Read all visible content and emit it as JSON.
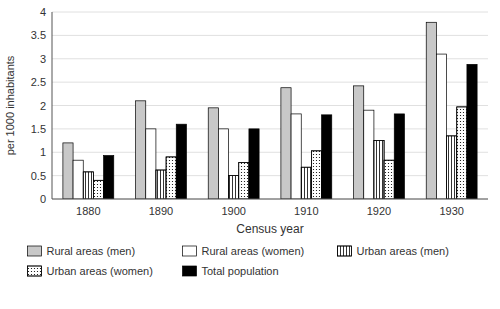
{
  "chart_data": {
    "type": "bar",
    "xlabel": "Census year",
    "ylabel": "per 1000 inhabitants",
    "categories": [
      "1880",
      "1890",
      "1900",
      "1910",
      "1920",
      "1930"
    ],
    "series": [
      {
        "name": "Rural areas (men)",
        "color": "#c8c8c8",
        "values": [
          1.2,
          2.1,
          1.95,
          2.38,
          2.42,
          3.78
        ]
      },
      {
        "name": "Rural areas (women)",
        "color": "#ffffff",
        "values": [
          0.83,
          1.5,
          1.5,
          1.82,
          1.9,
          3.1
        ]
      },
      {
        "name": "Urban areas (men)",
        "color": "#ffffff",
        "values": [
          0.58,
          0.62,
          0.5,
          0.68,
          1.25,
          1.35
        ]
      },
      {
        "name": "Urban areas (women)",
        "color": "#ffffff",
        "values": [
          0.4,
          0.9,
          0.78,
          1.03,
          0.83,
          1.97
        ]
      },
      {
        "name": "Total population",
        "color": "#000000",
        "values": [
          0.93,
          1.6,
          1.5,
          1.8,
          1.82,
          2.88
        ]
      }
    ],
    "ylim": [
      0,
      4
    ],
    "yticks": [
      0,
      0.5,
      1,
      1.5,
      2,
      2.5,
      3,
      3.5,
      4
    ],
    "grid": true,
    "legend": "bottom"
  }
}
